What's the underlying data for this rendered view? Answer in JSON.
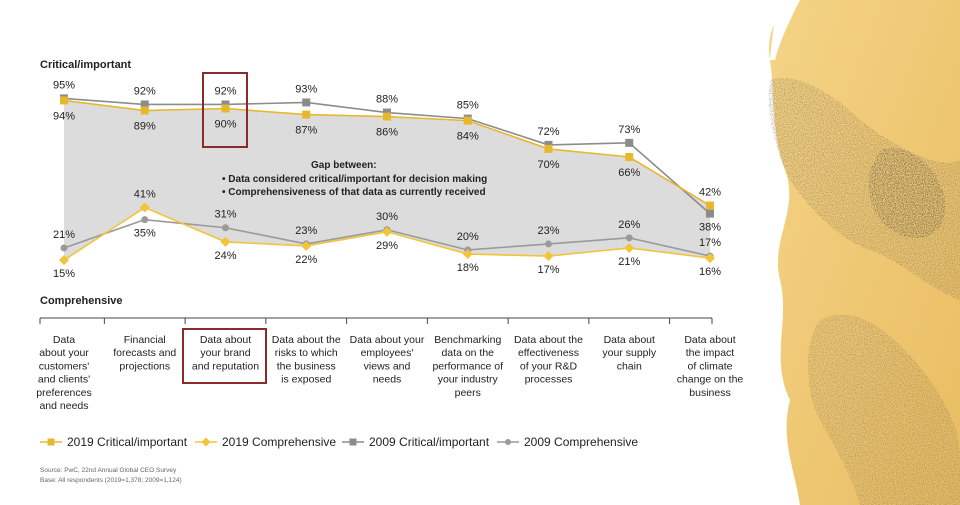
{
  "chart_data": {
    "type": "line",
    "header_top": "Critical/important",
    "header_bottom": "Comprehensive",
    "categories": [
      [
        "Data",
        "about your",
        "customers'",
        "and clients'",
        "preferences",
        "and needs"
      ],
      [
        "Financial",
        "forecasts and",
        "projections"
      ],
      [
        "Data about",
        "your brand",
        "and reputation"
      ],
      [
        "Data about the",
        "risks to which",
        "the business",
        "is exposed"
      ],
      [
        "Data about your",
        "employees'",
        "views and",
        "needs"
      ],
      [
        "Benchmarking",
        "data on the",
        "performance of",
        "your industry",
        "peers"
      ],
      [
        "Data about the",
        "effectiveness",
        "of your R&D",
        "processes"
      ],
      [
        "Data about",
        "your supply",
        "chain"
      ],
      [
        "Data about",
        "the impact",
        "of climate",
        "change on the",
        "business"
      ]
    ],
    "highlight_index": 2,
    "series": [
      {
        "name": "2019 Critical/important",
        "values": [
          94,
          89,
          90,
          87,
          86,
          84,
          70,
          66,
          42
        ],
        "color": "#e8b730",
        "marker": "square"
      },
      {
        "name": "2019 Comprehensive",
        "values": [
          15,
          41,
          24,
          22,
          29,
          18,
          17,
          21,
          16
        ],
        "color": "#f2c43a",
        "marker": "diamond"
      },
      {
        "name": "2009 Critical/important",
        "values": [
          95,
          92,
          92,
          93,
          88,
          85,
          72,
          73,
          38
        ],
        "color": "#8c8c8c",
        "marker": "square"
      },
      {
        "name": "2009 Comprehensive",
        "values": [
          21,
          35,
          31,
          23,
          30,
          20,
          23,
          26,
          17
        ],
        "color": "#9a9a9a",
        "marker": "circle"
      }
    ],
    "gap_annotation": {
      "title": "Gap between:",
      "lines": [
        "• Data considered critical/important for decision making",
        "• Comprehensiveness of that data as currently received"
      ]
    },
    "label_suffix": "%",
    "ylim": [
      0,
      100
    ]
  },
  "source_line1": "Source: PwC, 22nd Annual Global CEO Survey",
  "source_line2": "Base: All respondents (2019=1,378; 2009=1,124)"
}
